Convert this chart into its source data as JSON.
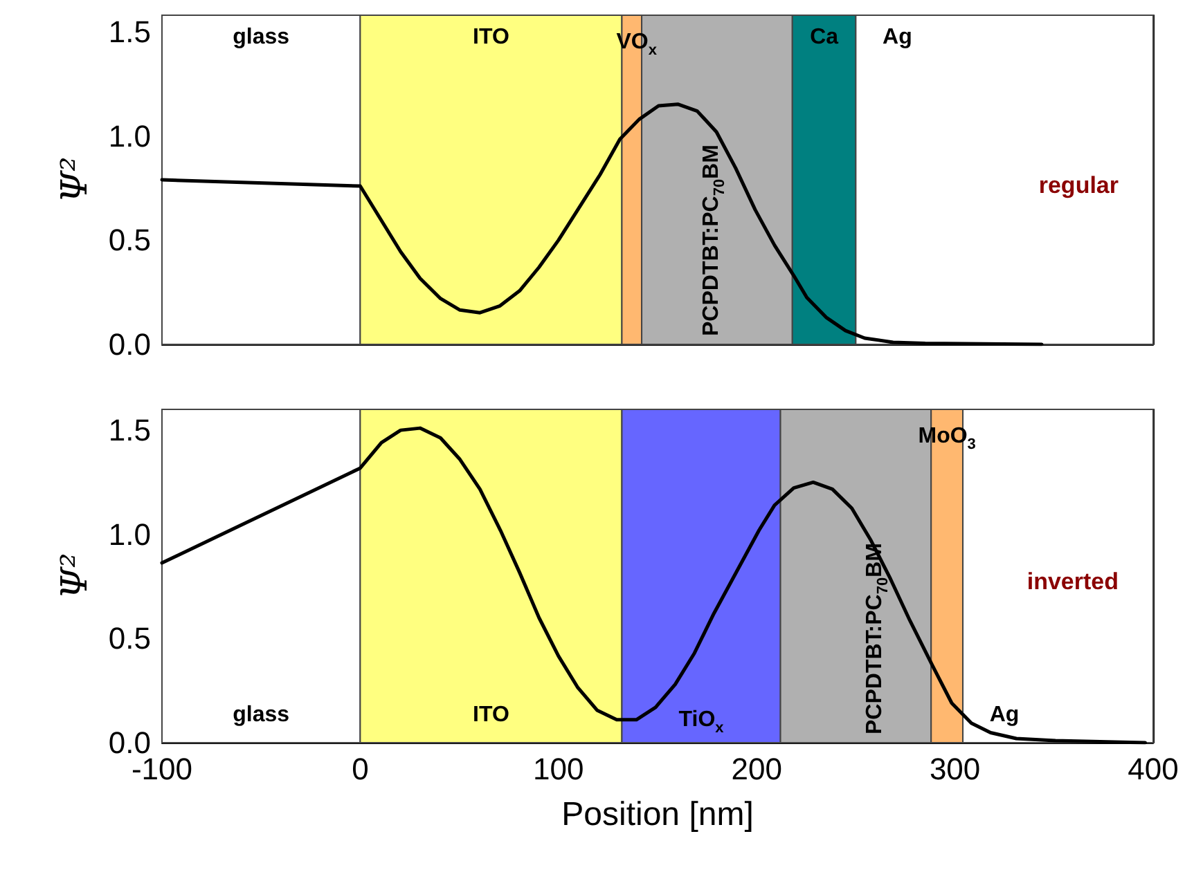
{
  "chart_data": [
    {
      "type": "line",
      "ylabel": "Ψ²",
      "xlim": [
        -100,
        400
      ],
      "ylim": [
        0,
        1.58
      ],
      "xticks": [
        -100,
        0,
        100,
        200,
        300,
        400
      ],
      "yticks": [
        {
          "value": 0,
          "label": "0.0"
        },
        {
          "value": 0.5,
          "label": "0.5"
        },
        {
          "value": 1,
          "label": "1.0"
        },
        {
          "value": 1.5,
          "label": "1.5"
        }
      ],
      "tick_labels": "y",
      "marker": "none",
      "line_style": "solid",
      "series": [
        {
          "color": "#000000",
          "x": [
            -100,
            0,
            20.4,
            30.2,
            40.5,
            50.3,
            60.4,
            70.5,
            80.4,
            90.2,
            100,
            109.8,
            121,
            131,
            140.7,
            150.5,
            160.2,
            170,
            179.7,
            189.4,
            199.2,
            209,
            218.7,
            225.3,
            235,
            244.8,
            254.5,
            268.8,
            285,
            343.8
          ],
          "values": [
            0.79,
            0.76,
            0.445,
            0.317,
            0.22,
            0.165,
            0.152,
            0.185,
            0.257,
            0.37,
            0.5,
            0.647,
            0.815,
            0.985,
            1.08,
            1.145,
            1.153,
            1.12,
            1.02,
            0.846,
            0.647,
            0.476,
            0.33,
            0.225,
            0.13,
            0.066,
            0.03,
            0.01,
            0.005,
            0
          ]
        }
      ],
      "bands": [
        {
          "axis": "x",
          "from": -100,
          "to": 0,
          "label": "glass",
          "color": "#ffffff"
        },
        {
          "axis": "x",
          "from": 0,
          "to": 132,
          "label": "ITO",
          "color": "#ffff80"
        },
        {
          "axis": "x",
          "from": 132,
          "to": 142,
          "label": "VO$_{x}$",
          "color": "#ffb870"
        },
        {
          "axis": "x",
          "from": 142,
          "to": 218,
          "label": "PCPDTBT:PC$_{70}$BM",
          "color": "#b0b0b0"
        },
        {
          "axis": "x",
          "from": 218,
          "to": 250,
          "label": "Ca",
          "color": "#008080"
        },
        {
          "axis": "x",
          "from": 250,
          "to": 400,
          "label": "Ag",
          "color": "#ffffff"
        }
      ],
      "annotations": [
        "regular"
      ]
    },
    {
      "type": "line",
      "ylabel": "Ψ²",
      "xlabel": "Position [nm]",
      "xlim": [
        -100,
        400
      ],
      "ylim": [
        0,
        1.6
      ],
      "xticks": [
        -100,
        0,
        100,
        200,
        300,
        400
      ],
      "yticks": [
        {
          "value": 0,
          "label": "0.0"
        },
        {
          "value": 0.5,
          "label": "0.5"
        },
        {
          "value": 1,
          "label": "1.0"
        },
        {
          "value": 1.5,
          "label": "1.5"
        }
      ],
      "marker": "none",
      "line_style": "solid",
      "series": [
        {
          "color": "#000000",
          "x": [
            -100,
            0,
            10.7,
            20.4,
            30.2,
            40.5,
            50.3,
            60.4,
            70.8,
            80.4,
            90.2,
            100,
            109.8,
            119.6,
            129.4,
            139.3,
            149,
            158.9,
            168.6,
            178.4,
            189.8,
            201.2,
            209,
            218.7,
            228.5,
            238.2,
            248,
            257.7,
            267.5,
            277.3,
            288.7,
            298.4,
            308.3,
            318,
            331,
            350.6,
            396
          ],
          "values": [
            0.863,
            1.318,
            1.44,
            1.5,
            1.51,
            1.463,
            1.36,
            1.217,
            1.018,
            0.817,
            0.6,
            0.416,
            0.264,
            0.155,
            0.11,
            0.11,
            0.17,
            0.28,
            0.43,
            0.62,
            0.82,
            1.02,
            1.14,
            1.223,
            1.25,
            1.217,
            1.125,
            0.97,
            0.786,
            0.586,
            0.37,
            0.19,
            0.094,
            0.048,
            0.02,
            0.01,
            0
          ]
        }
      ],
      "bands": [
        {
          "axis": "x",
          "from": -100,
          "to": 0,
          "label": "glass",
          "color": "#ffffff"
        },
        {
          "axis": "x",
          "from": 0,
          "to": 132,
          "label": "ITO",
          "color": "#ffff80"
        },
        {
          "axis": "x",
          "from": 132,
          "to": 212,
          "label": "TiO$_{x}$",
          "color": "#6666ff"
        },
        {
          "axis": "x",
          "from": 212,
          "to": 288,
          "label": "PCPDTBT:PC$_{70}$BM",
          "color": "#b0b0b0"
        },
        {
          "axis": "x",
          "from": 288,
          "to": 304,
          "label": "MoO$_{3}$",
          "color": "#ffb870"
        },
        {
          "axis": "x",
          "from": 304,
          "to": 400,
          "label": "Ag",
          "color": "#ffffff"
        }
      ],
      "annotations": [
        "inverted"
      ]
    }
  ]
}
